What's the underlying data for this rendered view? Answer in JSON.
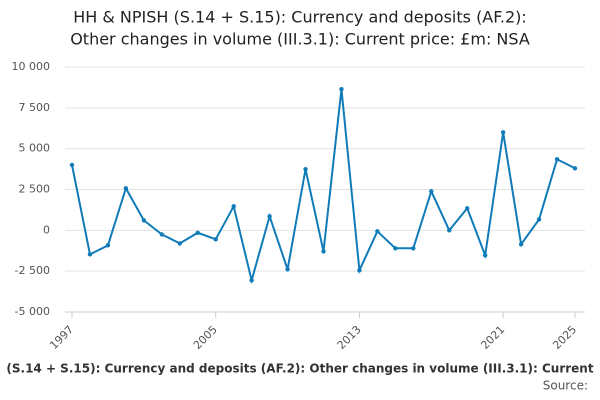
{
  "chart_data": {
    "type": "line",
    "title": [
      "HH & NPISH (S.14 + S.15): Currency and deposits (AF.2):",
      "Other changes in volume (III.3.1): Current price: £m: NSA"
    ],
    "x_axis_label": "(S.14 + S.15): Currency and deposits (AF.2): Other changes in volume (III.3.1): Current",
    "source": "Source:",
    "x": [
      1997,
      1998,
      1999,
      2000,
      2001,
      2002,
      2003,
      2004,
      2005,
      2006,
      2007,
      2008,
      2009,
      2010,
      2011,
      2012,
      2013,
      2014,
      2015,
      2016,
      2017,
      2018,
      2019,
      2020,
      2021,
      2022,
      2023,
      2024,
      2025
    ],
    "series": [
      {
        "name": "Other changes in volume",
        "color": "#0f7bb8",
        "values": [
          4000,
          -1470,
          -920,
          2570,
          610,
          -250,
          -800,
          -150,
          -550,
          1470,
          -3060,
          860,
          -2390,
          3740,
          -1290,
          8640,
          -2450,
          -60,
          -1100,
          -1100,
          2390,
          0,
          1350,
          -1530,
          6000,
          -860,
          670,
          4350,
          3800
        ]
      }
    ],
    "xlim": [
      1997,
      2025
    ],
    "xticks": [
      1997,
      2005,
      2013,
      2021,
      2025
    ],
    "ylim": [
      -5000,
      10000
    ],
    "yticks": [
      {
        "value": -5000,
        "label": "-5 000"
      },
      {
        "value": -2500,
        "label": "-2 500"
      },
      0,
      {
        "value": 2500,
        "label": "2 500"
      },
      {
        "value": 5000,
        "label": "5 000"
      },
      {
        "value": 7500,
        "label": "7 500"
      },
      {
        "value": 10000,
        "label": "10 000"
      }
    ],
    "grid": true
  }
}
